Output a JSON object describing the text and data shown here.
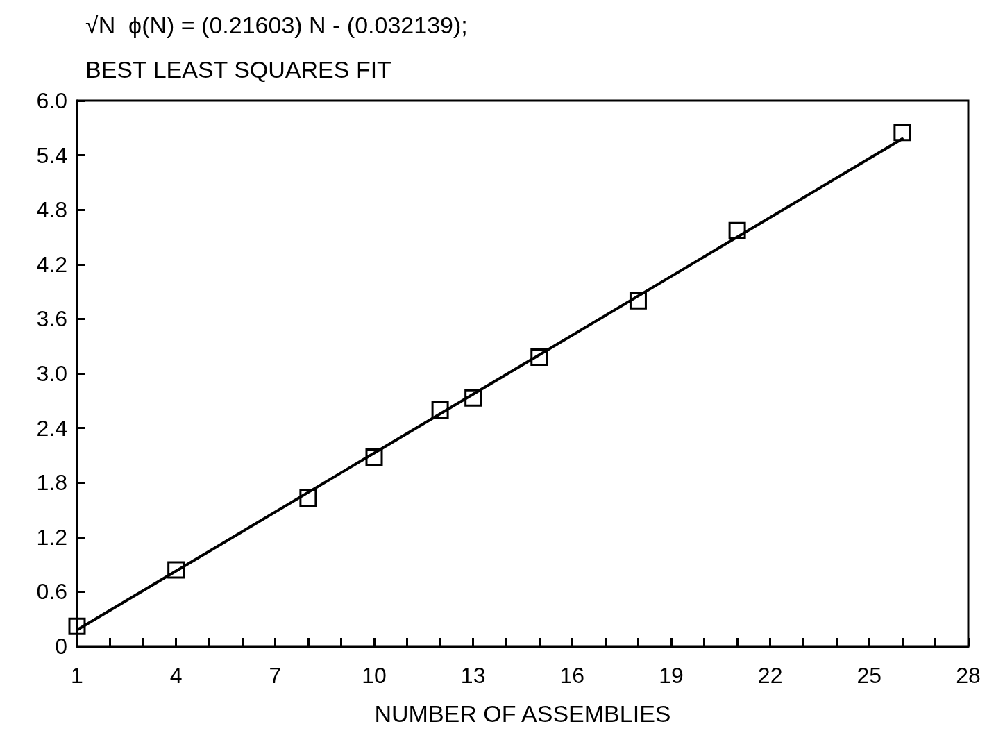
{
  "chart_data": {
    "type": "scatter",
    "title": "√N  ϕ(N) = (0.21603) N - (0.032139);",
    "subtitle": "BEST LEAST SQUARES FIT",
    "xlabel": "NUMBER OF ASSEMBLIES",
    "xlim": [
      1,
      28
    ],
    "ylim": [
      0,
      6
    ],
    "xticks": [
      1,
      {
        "value": 2,
        "label": null
      },
      {
        "value": 3,
        "label": null
      },
      4,
      {
        "value": 5,
        "label": null
      },
      {
        "value": 6,
        "label": null
      },
      7,
      {
        "value": 8,
        "label": null
      },
      {
        "value": 9,
        "label": null
      },
      10,
      {
        "value": 11,
        "label": null
      },
      {
        "value": 12,
        "label": null
      },
      13,
      {
        "value": 14,
        "label": null
      },
      {
        "value": 15,
        "label": null
      },
      16,
      {
        "value": 17,
        "label": null
      },
      {
        "value": 18,
        "label": null
      },
      19,
      {
        "value": 20,
        "label": null
      },
      {
        "value": 21,
        "label": null
      },
      22,
      {
        "value": 23,
        "label": null
      },
      {
        "value": 24,
        "label": null
      },
      25,
      {
        "value": 26,
        "label": null
      },
      {
        "value": 27,
        "label": null
      },
      28
    ],
    "yticks": [
      0,
      0.6,
      1.2,
      1.8,
      2.4,
      {
        "value": 3,
        "label": "3.0"
      },
      3.6,
      4.2,
      4.8,
      5.4,
      {
        "value": 6,
        "label": "6.0"
      }
    ],
    "grid": false,
    "series": [
      {
        "color": "#000000",
        "marker": "square",
        "x": [
          1,
          4,
          8,
          10,
          12,
          13,
          15,
          18,
          21,
          26
        ],
        "values": [
          0.22,
          0.84,
          1.63,
          2.08,
          2.6,
          2.73,
          3.18,
          3.8,
          4.57,
          5.65
        ]
      },
      {
        "type": "line",
        "color": "#000000",
        "marker": "none",
        "line_style": "solid",
        "x": [
          1,
          26
        ],
        "values": [
          0.18,
          5.58
        ]
      }
    ]
  }
}
